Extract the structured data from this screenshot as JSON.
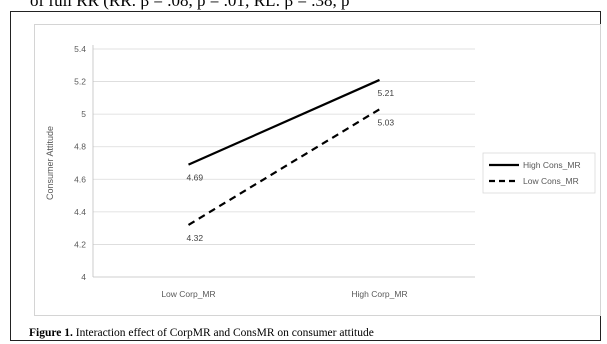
{
  "page": {
    "clipped_text_above": "of full RR (RR: β = .08, p = .01; RL: β = .38, p",
    "caption_label": "Figure 1.",
    "caption_text": " Interaction effect of CorpMR and ConsMR on consumer attitude"
  },
  "chart_data": {
    "type": "line",
    "ylabel": "Consumer Attitude",
    "xlabel": "",
    "categories": [
      "Low Corp_MR",
      "High Corp_MR"
    ],
    "ylim": [
      4,
      5.4
    ],
    "yticks": [
      4,
      4.2,
      4.4,
      4.6,
      4.8,
      5,
      5.2,
      5.4
    ],
    "ytick_labels": [
      "4",
      "4.2",
      "4.4",
      "4.6",
      "4.8",
      "5",
      "5.2",
      "5.4"
    ],
    "grid": true,
    "legend_position": "right",
    "series": [
      {
        "name": "High Cons_MR",
        "values": [
          4.69,
          5.21
        ],
        "labels": [
          "4.69",
          "5.21"
        ],
        "style": "solid",
        "color": "#000000"
      },
      {
        "name": "Low Cons_MR",
        "values": [
          4.32,
          5.03
        ],
        "labels": [
          "4.32",
          "5.03"
        ],
        "style": "dashed",
        "color": "#000000"
      }
    ]
  }
}
